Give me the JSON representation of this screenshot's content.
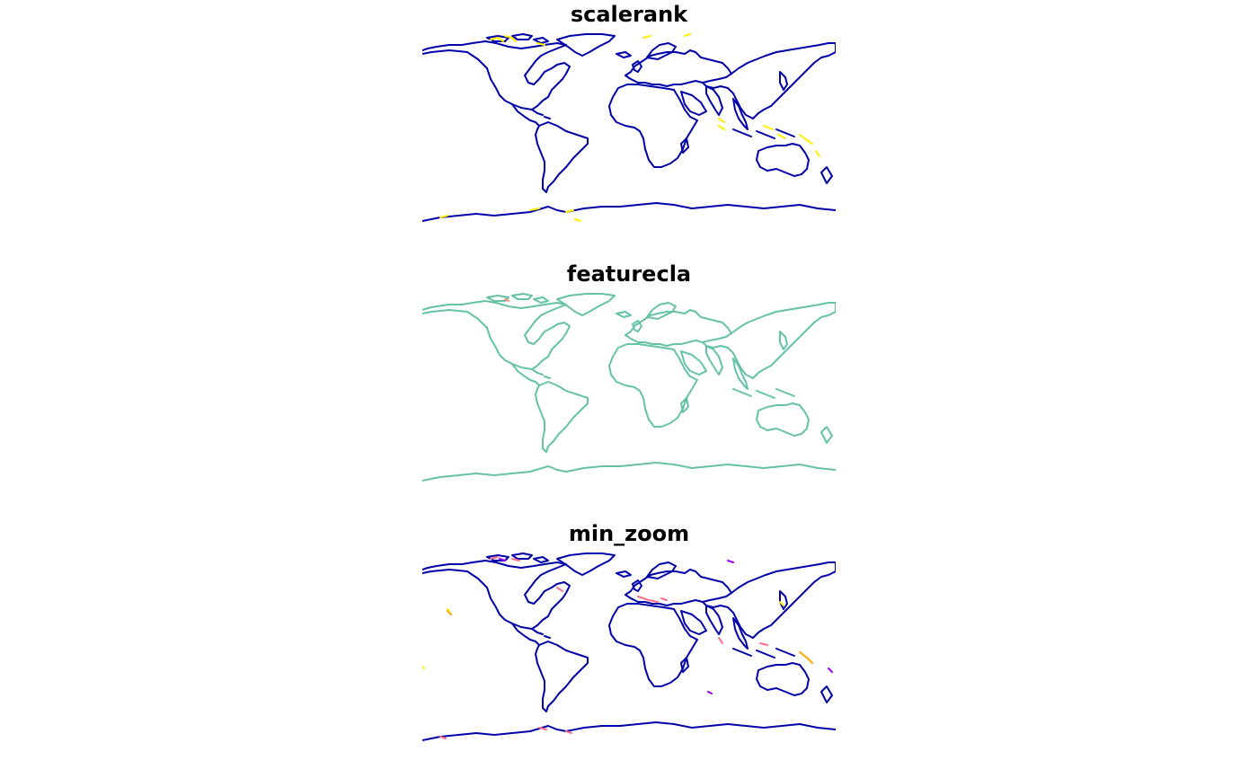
{
  "panels": [
    {
      "title": "scalerank",
      "base_color": "#0000aa",
      "highlight_colors": [
        "#ffee00"
      ]
    },
    {
      "title": "featurecla",
      "base_color": "#66c2a5",
      "highlight_colors": [
        "#fc8d62"
      ]
    },
    {
      "title": "min_zoom",
      "base_color": "#0000aa",
      "highlight_colors": [
        "#ff6e8a",
        "#ffa500",
        "#9900ff",
        "#ffee00"
      ]
    }
  ]
}
